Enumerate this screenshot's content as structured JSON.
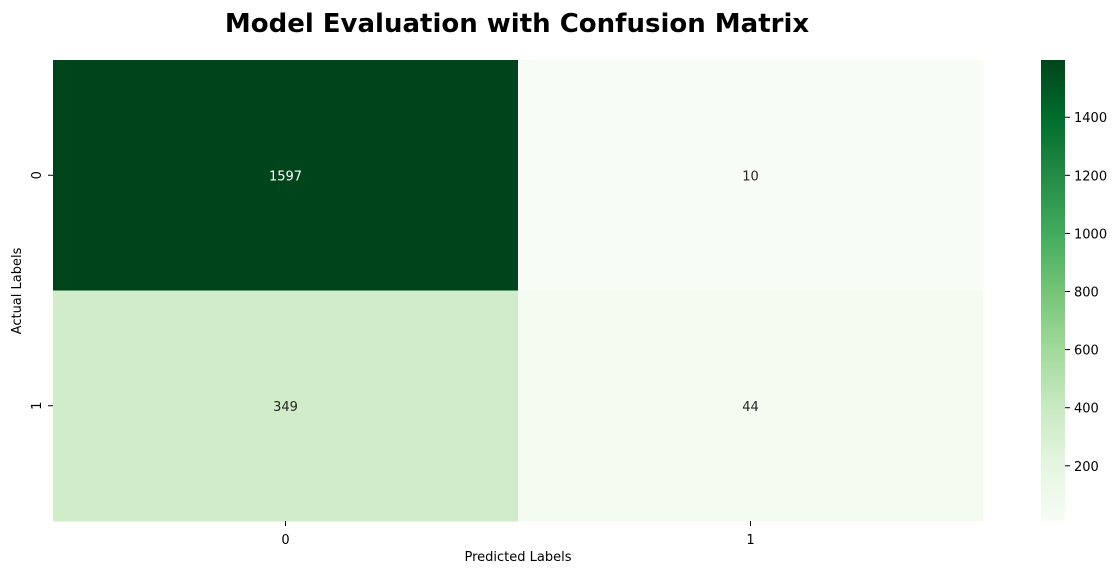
{
  "chart_data": {
    "type": "heatmap",
    "title": "Model Evaluation with Confusion Matrix",
    "xlabel": "Predicted Labels",
    "ylabel": "Actual Labels",
    "x_categories": [
      "0",
      "1"
    ],
    "y_categories": [
      "0",
      "1"
    ],
    "values": [
      [
        1597,
        10
      ],
      [
        349,
        44
      ]
    ],
    "colormap": "Greens",
    "colormap_stops": [
      "#f7fcf5",
      "#e5f5e0",
      "#c7e9c0",
      "#a1d99b",
      "#74c476",
      "#41ab5d",
      "#238b45",
      "#006d2c",
      "#00441b"
    ],
    "colorbar_range": [
      10,
      1597
    ],
    "colorbar_ticks": [
      200,
      400,
      600,
      800,
      1000,
      1200,
      1400
    ],
    "grid": false,
    "legend": "colorbar-right"
  }
}
